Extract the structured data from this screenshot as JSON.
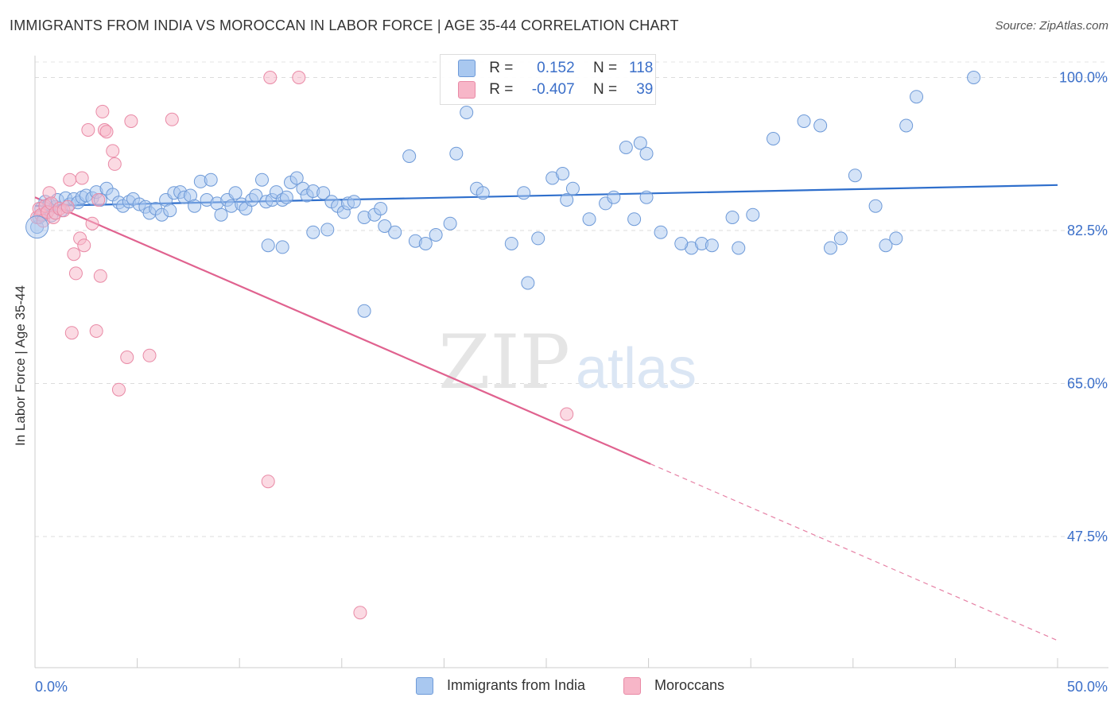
{
  "title": "IMMIGRANTS FROM INDIA VS MOROCCAN IN LABOR FORCE | AGE 35-44 CORRELATION CHART",
  "source": "Source: ZipAtlas.com",
  "watermark": {
    "zip": "ZIP",
    "atlas": "atlas"
  },
  "legend_top": {
    "rows": [
      {
        "r_label": "R =",
        "r_value": "0.152",
        "n_label": "N =",
        "n_value": "118",
        "color": "#a9c8f0"
      },
      {
        "r_label": "R =",
        "r_value": "-0.407",
        "n_label": "N =",
        "n_value": "39",
        "color": "#f7b6c8"
      }
    ]
  },
  "legend_bottom": [
    {
      "label": "Immigrants from India",
      "color": "#a9c8f0"
    },
    {
      "label": "Moroccans",
      "color": "#f7b6c8"
    }
  ],
  "chart_data": {
    "type": "scatter",
    "title": "IMMIGRANTS FROM INDIA VS MOROCCAN IN LABOR FORCE | AGE 35-44 CORRELATION CHART",
    "xlabel": "",
    "ylabel": "In Labor Force | Age 35-44",
    "xlim": [
      0,
      50
    ],
    "ylim": [
      32.5,
      102.5
    ],
    "x_tick_labels": [
      {
        "value": 0,
        "label": "0.0%"
      },
      {
        "value": 50,
        "label": "50.0%"
      }
    ],
    "y_tick_labels": [
      {
        "value": 100,
        "label": "100.0%"
      },
      {
        "value": 82.5,
        "label": "82.5%"
      },
      {
        "value": 65,
        "label": "65.0%"
      },
      {
        "value": 47.5,
        "label": "47.5%"
      }
    ],
    "grid": true,
    "legend_position": "top-center",
    "series": [
      {
        "name": "Immigrants from India",
        "color": "#a9c8f0",
        "stroke": "#6e9ad8",
        "trend": {
          "x": [
            0,
            50
          ],
          "y": [
            85.3,
            87.7
          ],
          "color": "#2f6fcc"
        },
        "points": [
          [
            0.1,
            82.9
          ],
          [
            0.2,
            84.0
          ],
          [
            0.3,
            85.0
          ],
          [
            0.4,
            84.3
          ],
          [
            0.5,
            85.8
          ],
          [
            0.6,
            84.6
          ],
          [
            0.7,
            85.5
          ],
          [
            0.8,
            84.2
          ],
          [
            1.0,
            85.2
          ],
          [
            1.1,
            86.0
          ],
          [
            1.3,
            84.8
          ],
          [
            1.5,
            86.2
          ],
          [
            1.7,
            85.5
          ],
          [
            1.9,
            86.1
          ],
          [
            2.1,
            85.7
          ],
          [
            2.3,
            86.3
          ],
          [
            2.5,
            86.5
          ],
          [
            2.8,
            86.2
          ],
          [
            3.0,
            86.9
          ],
          [
            3.2,
            86.0
          ],
          [
            3.5,
            87.3
          ],
          [
            3.8,
            86.6
          ],
          [
            4.1,
            85.7
          ],
          [
            4.3,
            85.3
          ],
          [
            4.6,
            85.8
          ],
          [
            4.8,
            86.1
          ],
          [
            5.1,
            85.5
          ],
          [
            5.4,
            85.2
          ],
          [
            5.6,
            84.5
          ],
          [
            5.9,
            85.0
          ],
          [
            6.2,
            84.3
          ],
          [
            6.4,
            86.0
          ],
          [
            6.6,
            84.8
          ],
          [
            6.8,
            86.8
          ],
          [
            7.1,
            86.9
          ],
          [
            7.3,
            86.3
          ],
          [
            7.6,
            86.5
          ],
          [
            7.8,
            85.3
          ],
          [
            8.1,
            88.1
          ],
          [
            8.4,
            86.0
          ],
          [
            8.6,
            88.3
          ],
          [
            8.9,
            85.6
          ],
          [
            9.1,
            84.3
          ],
          [
            9.4,
            86.0
          ],
          [
            9.6,
            85.3
          ],
          [
            9.8,
            86.8
          ],
          [
            10.1,
            85.5
          ],
          [
            10.3,
            85.0
          ],
          [
            10.6,
            86.0
          ],
          [
            10.8,
            86.5
          ],
          [
            11.1,
            88.3
          ],
          [
            11.3,
            85.8
          ],
          [
            11.6,
            86.0
          ],
          [
            11.8,
            86.9
          ],
          [
            12.1,
            86.0
          ],
          [
            12.3,
            86.3
          ],
          [
            12.5,
            88.0
          ],
          [
            12.8,
            88.5
          ],
          [
            13.1,
            87.3
          ],
          [
            13.3,
            86.5
          ],
          [
            13.6,
            87.0
          ],
          [
            14.1,
            86.8
          ],
          [
            14.5,
            85.8
          ],
          [
            14.8,
            85.3
          ],
          [
            15.1,
            84.6
          ],
          [
            15.3,
            85.6
          ],
          [
            15.6,
            85.8
          ],
          [
            16.1,
            84.0
          ],
          [
            16.6,
            84.3
          ],
          [
            16.9,
            85.0
          ],
          [
            17.1,
            83.0
          ],
          [
            17.6,
            82.3
          ],
          [
            18.3,
            91.0
          ],
          [
            18.6,
            81.3
          ],
          [
            19.1,
            81.0
          ],
          [
            19.6,
            82.0
          ],
          [
            20.3,
            83.3
          ],
          [
            20.6,
            91.3
          ],
          [
            21.1,
            96.0
          ],
          [
            21.6,
            87.3
          ],
          [
            21.9,
            86.8
          ],
          [
            23.3,
            81.0
          ],
          [
            23.9,
            86.8
          ],
          [
            24.1,
            76.5
          ],
          [
            24.6,
            81.6
          ],
          [
            25.3,
            88.5
          ],
          [
            25.8,
            89.0
          ],
          [
            26.0,
            86.0
          ],
          [
            26.3,
            87.3
          ],
          [
            27.1,
            83.8
          ],
          [
            27.9,
            85.6
          ],
          [
            28.3,
            86.3
          ],
          [
            28.9,
            92.0
          ],
          [
            29.3,
            83.8
          ],
          [
            29.6,
            92.5
          ],
          [
            29.9,
            86.3
          ],
          [
            32.1,
            80.5
          ],
          [
            32.6,
            81.0
          ],
          [
            33.1,
            80.8
          ],
          [
            34.1,
            84.0
          ],
          [
            34.4,
            80.5
          ],
          [
            35.1,
            84.3
          ],
          [
            36.1,
            93.0
          ],
          [
            37.6,
            95.0
          ],
          [
            38.4,
            94.5
          ],
          [
            38.9,
            80.5
          ],
          [
            39.4,
            81.6
          ],
          [
            40.1,
            88.8
          ],
          [
            41.1,
            85.3
          ],
          [
            41.6,
            80.8
          ],
          [
            42.1,
            81.6
          ],
          [
            42.6,
            94.5
          ],
          [
            43.1,
            97.8
          ],
          [
            45.9,
            100.0
          ],
          [
            11.4,
            80.8
          ],
          [
            12.1,
            80.6
          ],
          [
            13.6,
            82.3
          ],
          [
            14.3,
            82.6
          ],
          [
            16.1,
            73.3
          ],
          [
            29.9,
            91.3
          ],
          [
            30.6,
            82.3
          ],
          [
            31.6,
            81.0
          ]
        ]
      },
      {
        "name": "Moroccans",
        "color": "#f7b6c8",
        "stroke": "#e98aa6",
        "trend": {
          "x": [
            0,
            30.1
          ],
          "y": [
            86.3,
            55.8
          ],
          "color": "#e0628f",
          "dashed_to": {
            "x": 50,
            "y": 35.6
          }
        },
        "points": [
          [
            0.1,
            84.0
          ],
          [
            0.2,
            85.0
          ],
          [
            0.3,
            84.3
          ],
          [
            0.4,
            83.6
          ],
          [
            0.5,
            85.3
          ],
          [
            0.6,
            84.6
          ],
          [
            0.7,
            86.8
          ],
          [
            0.8,
            85.6
          ],
          [
            0.9,
            84.0
          ],
          [
            1.0,
            84.5
          ],
          [
            1.2,
            85.0
          ],
          [
            1.4,
            84.8
          ],
          [
            1.6,
            85.2
          ],
          [
            1.7,
            88.3
          ],
          [
            1.9,
            79.8
          ],
          [
            2.0,
            77.6
          ],
          [
            2.2,
            81.6
          ],
          [
            2.3,
            88.5
          ],
          [
            2.4,
            80.8
          ],
          [
            2.6,
            94.0
          ],
          [
            2.8,
            83.3
          ],
          [
            3.1,
            86.0
          ],
          [
            3.2,
            77.3
          ],
          [
            3.3,
            96.1
          ],
          [
            3.4,
            94.0
          ],
          [
            3.5,
            93.8
          ],
          [
            3.8,
            91.6
          ],
          [
            3.9,
            90.1
          ],
          [
            4.7,
            95.0
          ],
          [
            6.7,
            95.2
          ],
          [
            1.8,
            70.8
          ],
          [
            3.0,
            71.0
          ],
          [
            4.5,
            68.0
          ],
          [
            5.6,
            68.2
          ],
          [
            4.1,
            64.3
          ],
          [
            11.5,
            100.0
          ],
          [
            12.9,
            100.0
          ],
          [
            26.0,
            61.5
          ],
          [
            11.4,
            53.8
          ],
          [
            15.9,
            38.8
          ]
        ]
      }
    ]
  }
}
